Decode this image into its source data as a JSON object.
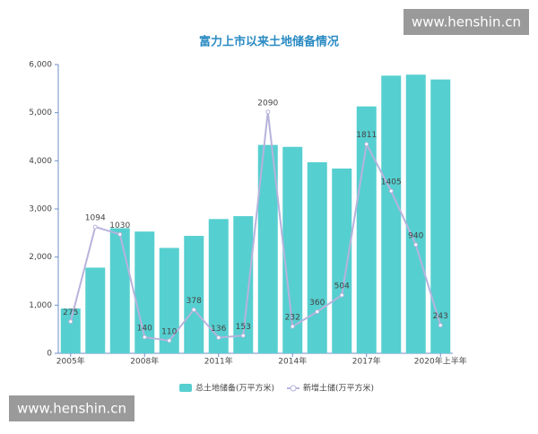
{
  "chart_data": {
    "type": "bar-line",
    "title": "富力上市以来土地储备情况",
    "categories": [
      "2005年",
      null,
      null,
      "2008年",
      null,
      null,
      "2011年",
      null,
      null,
      "2014年",
      null,
      null,
      "2017年",
      null,
      null,
      "2020年上半年"
    ],
    "series": [
      {
        "name": "总土地储备(万平方米)",
        "type": "bar",
        "color": "#56cfd0",
        "values": [
          930,
          1780,
          2600,
          2530,
          2190,
          2440,
          2790,
          2850,
          4330,
          4290,
          3970,
          3840,
          5130,
          5770,
          5790,
          5690
        ]
      },
      {
        "name": "新增土储(万平方米)",
        "type": "line",
        "color": "#b7b3dc",
        "axis": "y2",
        "values": [
          275,
          1094,
          1030,
          140,
          110,
          378,
          136,
          153,
          2090,
          232,
          360,
          504,
          1811,
          1405,
          940,
          243
        ]
      }
    ],
    "ylim": [
      0,
      6000
    ],
    "yticks": [
      0,
      {
        "value": 1000,
        "label": "1,000"
      },
      {
        "value": 2000,
        "label": "2,000"
      },
      {
        "value": 3000,
        "label": "3,000"
      },
      {
        "value": 4000,
        "label": "4,000"
      },
      {
        "value": 5000,
        "label": "5,000"
      },
      {
        "value": 6000,
        "label": "6,000"
      }
    ],
    "y2lim": [
      0,
      2500
    ],
    "legend": "bottom"
  },
  "watermarks": [
    "www.henshin.cn",
    "www.henshin.cn"
  ]
}
